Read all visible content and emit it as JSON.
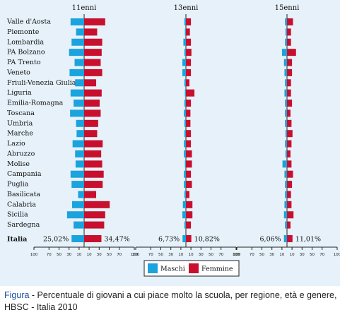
{
  "chart_data": {
    "type": "bar",
    "layout": "diverging-butterfly",
    "categories": [
      "Valle d'Aosta",
      "Piemonte",
      "Lombardia",
      "PA Bolzano",
      "PA Trento",
      "Veneto",
      "Friuli-Venezia Giulia",
      "Liguria",
      "Emilia-Romagna",
      "Toscana",
      "Umbria",
      "Marche",
      "Lazio",
      "Abruzzo",
      "Molise",
      "Campania",
      "Puglia",
      "Basilicata",
      "Calabria",
      "Sicilia",
      "Sardegna"
    ],
    "total_label": "Italia",
    "panels": [
      {
        "title": "11enni",
        "series": [
          {
            "name": "Maschi",
            "values": [
              27,
              16,
              25,
              30,
              19,
              29,
              18,
              27,
              21,
              28,
              16,
              15,
              23,
              18,
              17,
              27,
              25,
              12,
              24,
              34,
              21
            ],
            "total": 25.02,
            "total_label": "25,02%"
          },
          {
            "name": "Femmine",
            "values": [
              42,
              26,
              36,
              35,
              33,
              36,
              24,
              35,
              31,
              33,
              28,
              26,
              37,
              34,
              36,
              39,
              37,
              24,
              51,
              42,
              40
            ],
            "total": 34.47,
            "total_label": "34,47%"
          }
        ]
      },
      {
        "title": "13enni",
        "series": [
          {
            "name": "Maschi",
            "values": [
              3,
              2,
              5,
              3,
              7,
              7,
              3,
              2,
              3,
              4,
              3,
              3,
              4,
              4,
              2,
              4,
              4,
              3,
              6,
              7,
              3
            ],
            "total": 6.73,
            "total_label": "6,73%"
          },
          {
            "name": "Femmine",
            "values": [
              10,
              8,
              10,
              11,
              10,
              10,
              7,
              17,
              10,
              9,
              9,
              10,
              10,
              12,
              12,
              10,
              12,
              7,
              13,
              13,
              10
            ],
            "total": 10.82,
            "total_label": "10,82%"
          }
        ]
      },
      {
        "title": "15enni",
        "series": [
          {
            "name": "Maschi",
            "values": [
              4,
              3,
              4,
              10,
              6,
              5,
              4,
              5,
              4,
              4,
              4,
              3,
              4,
              3,
              9,
              5,
              4,
              4,
              5,
              6,
              4
            ],
            "total": 6.06,
            "total_label": "6,06%"
          },
          {
            "name": "Femmine",
            "values": [
              12,
              8,
              8,
              18,
              10,
              10,
              8,
              8,
              10,
              7,
              9,
              11,
              9,
              7,
              9,
              12,
              10,
              8,
              9,
              13,
              7
            ],
            "total": 11.01,
            "total_label": "11,01%"
          }
        ]
      }
    ],
    "axis_ticks": [
      "100",
      "70",
      "50",
      "30",
      "10",
      "10",
      "30",
      "50",
      "70",
      "100"
    ],
    "legend": [
      "Maschi",
      "Femmine"
    ],
    "colors": {
      "Maschi": "#1aa3dc",
      "Femmine": "#c8102e",
      "background": "#e6f1f9",
      "axis": "#222222"
    }
  },
  "caption": {
    "label": "Figura",
    "text": " - Percentuale di giovani a cui piace molto la scuola, per regione, età e genere, HBSC - Italia 2010"
  }
}
